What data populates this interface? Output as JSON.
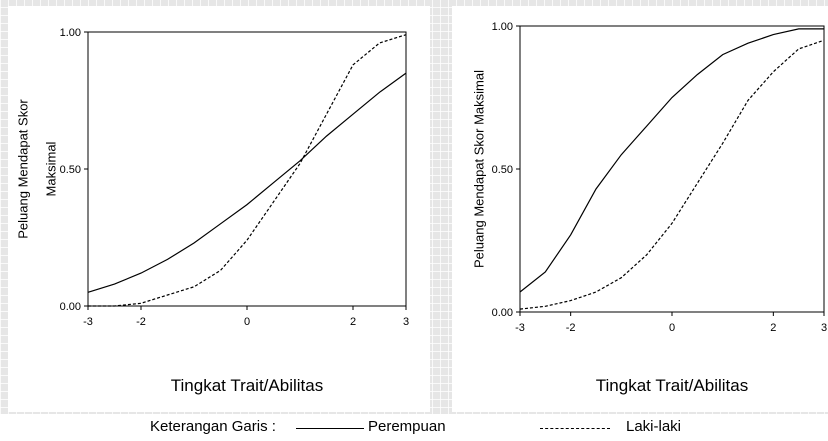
{
  "chart_data": [
    {
      "type": "line",
      "xlabel": "Tingkat Trait/Abilitas",
      "ylabel_lines": [
        "Peluang Mendapat Skor",
        "Maksimal"
      ],
      "xlim": [
        -3,
        3
      ],
      "ylim": [
        0,
        1
      ],
      "x_ticks": [
        "-3",
        "-2",
        "0",
        "2",
        "3"
      ],
      "y_ticks": [
        "0.00",
        "0.50",
        "1.00"
      ],
      "series": [
        {
          "name": "Perempuan",
          "style": "solid",
          "x": [
            -3,
            -2.5,
            -2,
            -1.5,
            -1,
            -0.5,
            0,
            0.5,
            1,
            1.5,
            2,
            2.5,
            3
          ],
          "y": [
            0.05,
            0.08,
            0.12,
            0.17,
            0.23,
            0.3,
            0.37,
            0.45,
            0.53,
            0.62,
            0.7,
            0.78,
            0.85
          ]
        },
        {
          "name": "Laki-laki",
          "style": "dotted",
          "x": [
            -3,
            -2.5,
            -2,
            -1.5,
            -1,
            -0.5,
            0,
            0.5,
            1,
            1.5,
            2,
            2.5,
            3
          ],
          "y": [
            0.0,
            0.0,
            0.01,
            0.04,
            0.07,
            0.13,
            0.24,
            0.38,
            0.52,
            0.7,
            0.88,
            0.96,
            0.99
          ]
        }
      ]
    },
    {
      "type": "line",
      "xlabel": "Tingkat Trait/Abilitas",
      "ylabel_lines": [
        "Peluang Mendapat Skor Maksimal"
      ],
      "xlim": [
        -3,
        3
      ],
      "ylim": [
        0,
        1
      ],
      "x_ticks": [
        "-3",
        "-2",
        "0",
        "2",
        "3"
      ],
      "y_ticks": [
        "0.00",
        "0.50",
        "1.00"
      ],
      "series": [
        {
          "name": "Perempuan",
          "style": "solid",
          "x": [
            -3,
            -2.5,
            -2,
            -1.5,
            -1,
            -0.5,
            0,
            0.5,
            1,
            1.5,
            2,
            2.5,
            3
          ],
          "y": [
            0.07,
            0.14,
            0.27,
            0.43,
            0.55,
            0.65,
            0.75,
            0.83,
            0.9,
            0.94,
            0.97,
            0.99,
            0.99
          ]
        },
        {
          "name": "Laki-laki",
          "style": "dotted",
          "x": [
            -3,
            -2.5,
            -2,
            -1.5,
            -1,
            -0.5,
            0,
            0.5,
            1,
            1.5,
            2,
            2.5,
            3
          ],
          "y": [
            0.01,
            0.02,
            0.04,
            0.07,
            0.12,
            0.2,
            0.31,
            0.45,
            0.59,
            0.74,
            0.84,
            0.92,
            0.95
          ]
        }
      ]
    }
  ],
  "legend": {
    "title": "Keterangan Garis :",
    "solid_label": "Perempuan",
    "dotted_label": "Laki-laki"
  }
}
